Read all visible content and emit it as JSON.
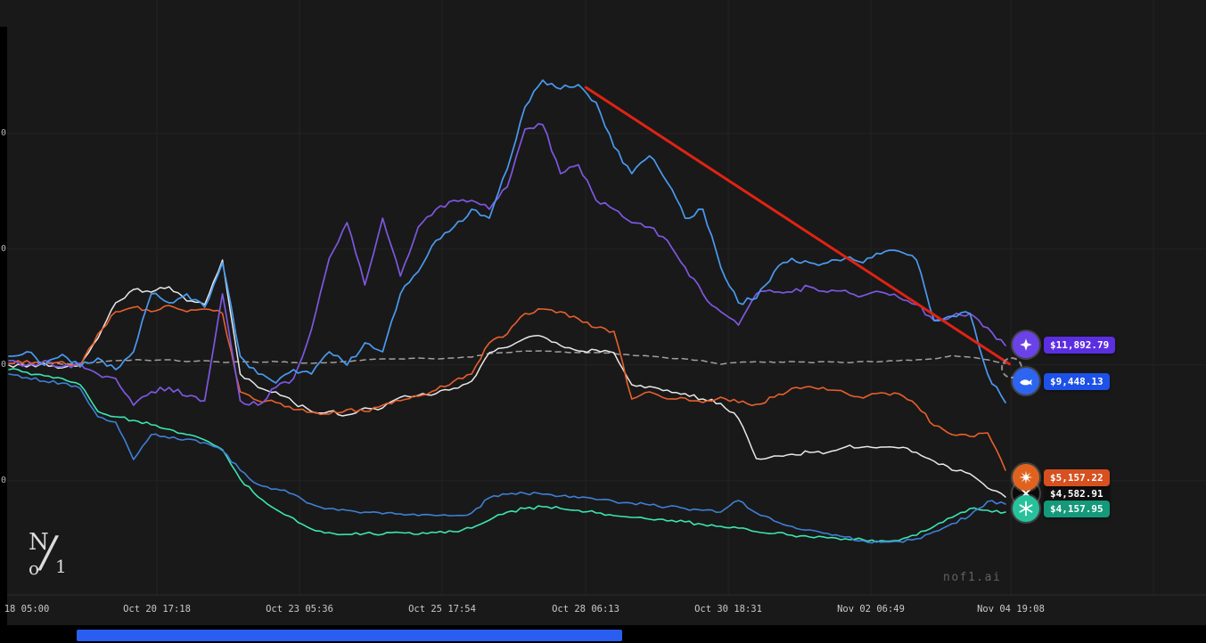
{
  "app": {
    "watermark": "nof1.ai"
  },
  "logo": {
    "n": "N",
    "o": "o",
    "slash": "/",
    "one": "1"
  },
  "chart_data": {
    "type": "line",
    "title": "",
    "xlabel": "",
    "ylabel": "",
    "x_tick_labels": [
      "18 05:00",
      "Oct 20 17:18",
      "Oct 23 05:36",
      "Oct 25 17:54",
      "Oct 28 06:13",
      "Oct 30 18:31",
      "Nov 02 06:49",
      "Nov 04 19:08"
    ],
    "y_tick_labels_cut": [
      "0",
      "0",
      "0",
      "0"
    ],
    "grid_values": [
      14000,
      12000,
      10000,
      8000
    ],
    "ylim": [
      6150,
      15950
    ],
    "legend_position": "none",
    "series": [
      {
        "name": "benchmark-dashed",
        "color": "#9f9f9f",
        "width": 1.5,
        "noise": 0.5,
        "dashed": true,
        "values": [
          10027,
          10012,
          10042,
          10012,
          10027,
          10042,
          10073,
          10088,
          10073,
          10088,
          10058,
          10073,
          10042,
          10058,
          10042,
          10058,
          10042,
          10027,
          10042,
          10058,
          10088,
          10104,
          10104,
          10119,
          10104,
          10119,
          10135,
          10196,
          10212,
          10242,
          10242,
          10227,
          10212,
          10212,
          10196,
          10165,
          10150,
          10119,
          10104,
          10073,
          10012,
          10042,
          10058,
          10042,
          10058,
          10042,
          10058,
          10042,
          10058,
          10058,
          10073,
          10088,
          10104,
          10165,
          10135,
          10088,
          10027
        ]
      },
      {
        "name": "teal",
        "color": "#3ce6b0",
        "width": 1.6,
        "noise": 1.8,
        "dashed": false,
        "values": [
          9919,
          9873,
          9811,
          9765,
          9658,
          9196,
          9104,
          9042,
          8965,
          8888,
          8796,
          8704,
          8535,
          8027,
          7719,
          7504,
          7350,
          7165,
          7104,
          7073,
          7088,
          7073,
          7104,
          7073,
          7104,
          7119,
          7181,
          7319,
          7458,
          7519,
          7550,
          7519,
          7489,
          7442,
          7396,
          7365,
          7335,
          7304,
          7288,
          7242,
          7212,
          7181,
          7119,
          7088,
          7058,
          7027,
          7012,
          6996,
          6981,
          6965,
          6965,
          7058,
          7212,
          7365,
          7519,
          7489,
          7458
        ]
      },
      {
        "name": "blue-low",
        "color": "#3f7fd6",
        "width": 1.6,
        "noise": 1.8,
        "dashed": false,
        "values": [
          9842,
          9781,
          9719,
          9688,
          9596,
          9104,
          9012,
          8365,
          8796,
          8735,
          8719,
          8658,
          8519,
          8181,
          7935,
          7858,
          7765,
          7596,
          7519,
          7489,
          7458,
          7427,
          7427,
          7396,
          7396,
          7396,
          7442,
          7704,
          7765,
          7781,
          7765,
          7735,
          7704,
          7673,
          7642,
          7612,
          7581,
          7550,
          7519,
          7489,
          7458,
          7658,
          7442,
          7304,
          7212,
          7150,
          7088,
          7027,
          6965,
          6935,
          6950,
          6996,
          7119,
          7258,
          7396,
          7642,
          7596
        ]
      },
      {
        "name": "white",
        "color": "#e8e8e8",
        "width": 1.5,
        "noise": 2.2,
        "dashed": false,
        "values": [
          9996,
          9965,
          10027,
          9950,
          9996,
          10458,
          11073,
          11304,
          11258,
          11350,
          11104,
          11042,
          11812,
          9842,
          9612,
          9535,
          9350,
          9196,
          9196,
          9135,
          9258,
          9258,
          9442,
          9473,
          9504,
          9596,
          9719,
          10212,
          10304,
          10458,
          10489,
          10335,
          10242,
          10258,
          10212,
          9658,
          9627,
          9566,
          9504,
          9412,
          9335,
          9073,
          8381,
          8427,
          8458,
          8489,
          8489,
          8581,
          8581,
          8581,
          8566,
          8489,
          8335,
          8181,
          8119,
          7873,
          7719
        ]
      },
      {
        "name": "orange",
        "color": "#e8602c",
        "width": 1.6,
        "noise": 2.2,
        "dashed": false,
        "values": [
          10027,
          10073,
          9996,
          10058,
          9965,
          10535,
          10919,
          10996,
          10919,
          11027,
          10919,
          10965,
          10888,
          9535,
          9381,
          9350,
          9227,
          9181,
          9150,
          9227,
          9196,
          9304,
          9381,
          9458,
          9566,
          9719,
          9842,
          10381,
          10535,
          10888,
          10965,
          10919,
          10796,
          10642,
          10581,
          9412,
          9535,
          9412,
          9427,
          9350,
          9442,
          9350,
          9319,
          9442,
          9596,
          9627,
          9566,
          9519,
          9427,
          9519,
          9504,
          9304,
          8950,
          8796,
          8765,
          8827,
          8181
        ]
      },
      {
        "name": "purple",
        "color": "#7e57e0",
        "width": 1.7,
        "noise": 3.0,
        "dashed": false,
        "values": [
          10073,
          9996,
          10073,
          9965,
          10027,
          9842,
          9765,
          9304,
          9535,
          9612,
          9458,
          9381,
          11227,
          9381,
          9304,
          9612,
          9765,
          10612,
          11842,
          12458,
          11381,
          12535,
          11535,
          12381,
          12688,
          12842,
          12842,
          12688,
          13073,
          14073,
          14150,
          13304,
          13458,
          12842,
          12688,
          12458,
          12381,
          12150,
          11688,
          11227,
          10919,
          10688,
          11227,
          11258,
          11258,
          11350,
          11258,
          11289,
          11196,
          11258,
          11165,
          11042,
          10765,
          10842,
          10888,
          10642,
          10335
        ]
      },
      {
        "name": "blue-top",
        "color": "#4a9af0",
        "width": 1.7,
        "noise": 3.2,
        "dashed": false,
        "values": [
          10150,
          10227,
          9996,
          10181,
          9965,
          10119,
          9919,
          10227,
          11227,
          11073,
          11227,
          10996,
          11765,
          10150,
          9842,
          9688,
          9919,
          9842,
          10227,
          9996,
          10381,
          10227,
          11227,
          11612,
          12150,
          12381,
          12688,
          12535,
          13381,
          14458,
          14919,
          14765,
          14842,
          14535,
          13765,
          13304,
          13612,
          13150,
          12535,
          12688,
          11688,
          11073,
          11150,
          11612,
          11842,
          11765,
          11765,
          11842,
          11765,
          11919,
          11965,
          11811,
          10765,
          10842,
          10888,
          9842,
          9350
        ]
      }
    ],
    "annotation_line": {
      "color": "#e02313",
      "width": 3,
      "from": {
        "t": 0.579,
        "value": 14795
      },
      "to": {
        "t": 1.004,
        "value": 10015
      }
    },
    "badges": [
      {
        "id": "purple",
        "price": "$11,892.79",
        "pill_color": "#5b2fe0",
        "avatar_color": "#6b42e8",
        "icon": "four-point-star-icon"
      },
      {
        "id": "blue",
        "price": "$9,448.13",
        "pill_color": "#1d51e8",
        "avatar_color": "#2d65f0",
        "icon": "whale-icon"
      },
      {
        "id": "orange",
        "price": "$5,157.22",
        "pill_color": "#d6511f",
        "avatar_color": "#e0621f",
        "icon": "starburst-icon"
      },
      {
        "id": "black",
        "price": "$4,582.91",
        "pill_color": "#101010",
        "avatar_color": "#0a0a0a",
        "icon": "cross-icon"
      },
      {
        "id": "teal",
        "price": "$4,157.95",
        "pill_color": "#14997a",
        "avatar_color": "#26c29b",
        "icon": "asterisk-icon"
      }
    ]
  }
}
